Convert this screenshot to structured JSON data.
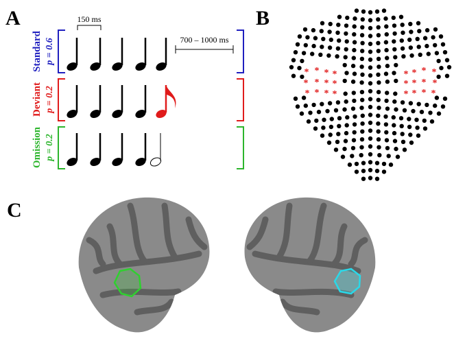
{
  "panels": {
    "A": {
      "label": "A",
      "interval_short": "150 ms",
      "interval_long": "700 – 1000 ms",
      "conditions": [
        {
          "name": "Standard",
          "probability": "p = 0.6"
        },
        {
          "name": "Deviant",
          "probability": "p = 0.2"
        },
        {
          "name": "Omission",
          "probability": "p = 0.2"
        }
      ]
    },
    "B": {
      "label": "B"
    },
    "C": {
      "label": "C"
    }
  }
}
